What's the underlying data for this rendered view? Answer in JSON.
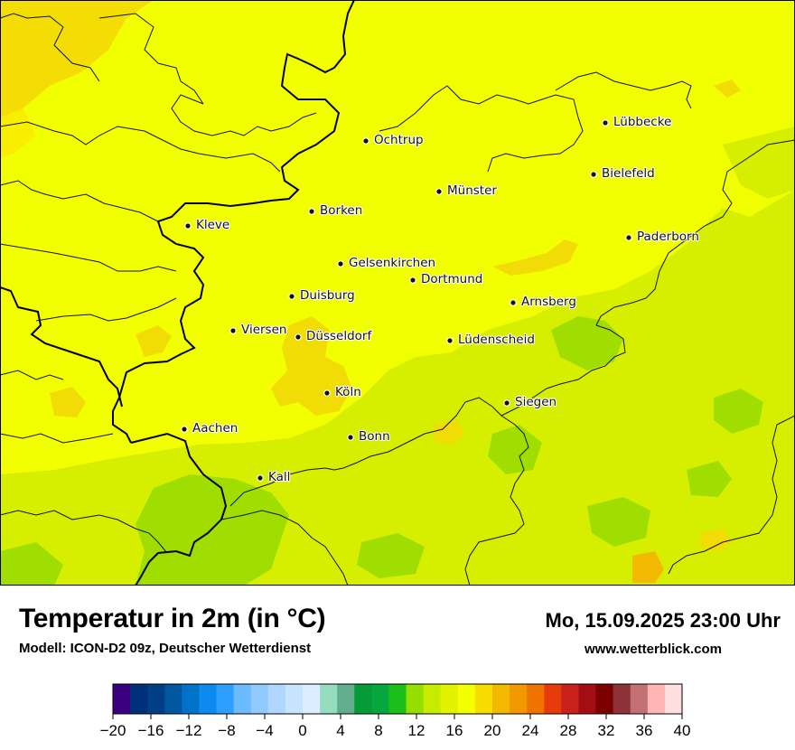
{
  "title": "Temperatur in 2m (in °C)",
  "model": "Modell: ICON-D2 09z, Deutscher Wetterdienst",
  "datetime": "Mo, 15.09.2025 23:00 Uhr",
  "website": "www.wetterblick.com",
  "cities": [
    {
      "name": "Lübbecke"
    },
    {
      "name": "Ochtrup"
    },
    {
      "name": "Bielefeld"
    },
    {
      "name": "Münster"
    },
    {
      "name": "Borken"
    },
    {
      "name": "Kleve"
    },
    {
      "name": "Paderborn"
    },
    {
      "name": "Gelsenkirchen"
    },
    {
      "name": "Dortmund"
    },
    {
      "name": "Duisburg"
    },
    {
      "name": "Arnsberg"
    },
    {
      "name": "Viersen"
    },
    {
      "name": "Düsseldorf"
    },
    {
      "name": "Lüdenscheid"
    },
    {
      "name": "Köln"
    },
    {
      "name": "Siegen"
    },
    {
      "name": "Aachen"
    },
    {
      "name": "Bonn"
    },
    {
      "name": "Kall"
    }
  ],
  "legend": {
    "ticks": [
      "−20",
      "−16",
      "−12",
      "−8",
      "−4",
      "0",
      "4",
      "8",
      "12",
      "16",
      "20",
      "24",
      "28",
      "32",
      "36",
      "40"
    ],
    "min": -20,
    "max": 40,
    "step": 2,
    "colors": [
      "#3a007f",
      "#00307a",
      "#003f86",
      "#00569f",
      "#0072c8",
      "#0d8aee",
      "#2f9fff",
      "#6dbbff",
      "#90caff",
      "#aed6ff",
      "#c8e4ff",
      "#dbeeff",
      "#96dcbe",
      "#62ad8b",
      "#079a38",
      "#04a83c",
      "#1cbe1a",
      "#95de00",
      "#c8ec00",
      "#e2f300",
      "#f4ff00",
      "#f6dc00",
      "#f2b900",
      "#f29900",
      "#ef7400",
      "#e83b0c",
      "#c8201b",
      "#a30d14",
      "#7b0000",
      "#8d3236",
      "#c36f73",
      "#ffb5b5",
      "#ffdede"
    ]
  }
}
